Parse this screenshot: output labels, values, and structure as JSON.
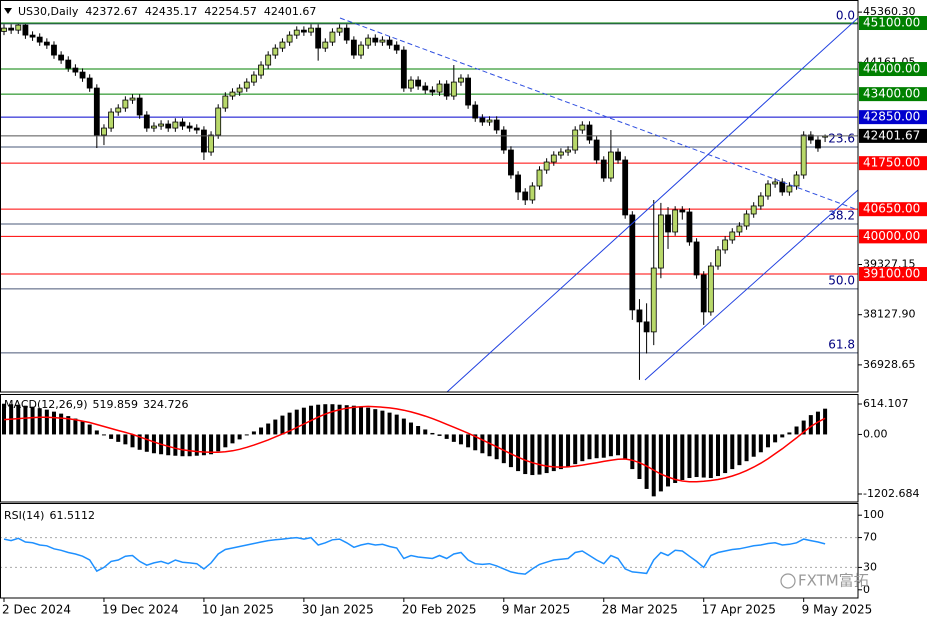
{
  "chart_data": [
    {
      "type": "candlestick",
      "title": "US30,Daily",
      "categories": [
        "2 Dec 2024",
        null,
        null,
        null,
        null,
        null,
        null,
        null,
        null,
        null,
        null,
        null,
        null,
        null,
        "19 Dec 2024",
        null,
        null,
        null,
        null,
        null,
        null,
        null,
        null,
        null,
        null,
        null,
        null,
        null,
        "10 Jan 2025",
        null,
        null,
        null,
        null,
        null,
        null,
        null,
        null,
        null,
        null,
        null,
        null,
        null,
        "30 Jan 2025",
        null,
        null,
        null,
        null,
        null,
        null,
        null,
        null,
        null,
        null,
        null,
        null,
        null,
        "20 Feb 2025",
        null,
        null,
        null,
        null,
        null,
        null,
        null,
        null,
        null,
        null,
        null,
        null,
        null,
        "9 Mar 2025",
        null,
        null,
        null,
        null,
        null,
        null,
        null,
        null,
        null,
        null,
        null,
        null,
        null,
        "28 Mar 2025",
        null,
        null,
        null,
        null,
        null,
        null,
        null,
        null,
        null,
        null,
        null,
        null,
        null,
        "17 Apr 2025",
        null,
        null,
        null,
        null,
        null,
        null,
        null,
        null,
        null,
        null,
        null,
        null,
        null,
        "9 May 2025",
        null,
        null,
        null
      ],
      "open": [
        44900,
        44978,
        44930,
        45050,
        44811,
        44763,
        44644,
        44572,
        44334,
        44214,
        44023,
        43927,
        43784,
        43545,
        42422,
        42589,
        42972,
        43068,
        43258,
        43306,
        42901,
        42589,
        42637,
        42685,
        42589,
        42733,
        42637,
        42589,
        42542,
        42016,
        42422,
        43068,
        43354,
        43449,
        43545,
        43688,
        43856,
        44095,
        44334,
        44500,
        44644,
        44811,
        44930,
        44883,
        44978,
        44500,
        44644,
        44883,
        44978,
        44692,
        44334,
        44572,
        44739,
        44644,
        44692,
        44572,
        44453,
        43545,
        43736,
        43593,
        43497,
        43449,
        43641,
        43354,
        43688,
        43784,
        43139,
        42828,
        42733,
        42781,
        42542,
        42064,
        41467,
        41061,
        40870,
        41204,
        41586,
        41777,
        41944,
        42016,
        42064,
        42542,
        42661,
        42303,
        41825,
        41395,
        42016,
        41825,
        40512,
        38242,
        37956,
        37717,
        39243,
        40512,
        40105,
        40631,
        40583,
        39866,
        39078,
        38194,
        39291,
        39676,
        39914,
        40105,
        40248,
        40535,
        40727,
        40965,
        41252,
        41300,
        41061,
        41204,
        41467,
        42422,
        42303,
        42372.67
      ],
      "high": [
        45068,
        45068,
        45073,
        45073,
        44901,
        44853,
        44734,
        44662,
        44424,
        44304,
        44113,
        44017,
        43874,
        43635,
        42679,
        43062,
        43158,
        43348,
        43396,
        43396,
        42991,
        42727,
        42775,
        42775,
        42823,
        42823,
        42727,
        42679,
        42632,
        42512,
        43158,
        43444,
        43539,
        43635,
        43778,
        43946,
        44185,
        44424,
        44590,
        44734,
        44901,
        45020,
        45020,
        45068,
        45068,
        44734,
        44973,
        45068,
        45068,
        44782,
        44662,
        44829,
        44829,
        44782,
        44782,
        44662,
        44543,
        43826,
        43826,
        43683,
        43587,
        43731,
        43731,
        44095,
        43874,
        43874,
        43229,
        42918,
        42871,
        42871,
        42632,
        42154,
        41557,
        41151,
        41294,
        41676,
        41867,
        42034,
        42106,
        42154,
        42632,
        42751,
        42751,
        42393,
        41915,
        42542,
        42106,
        41915,
        40602,
        38500,
        38400,
        40870,
        40800,
        40700,
        40721,
        40721,
        40673,
        39956,
        39168,
        39381,
        39766,
        40004,
        40195,
        40338,
        40625,
        40817,
        41055,
        41342,
        41390,
        41390,
        41294,
        41557,
        42512,
        42512,
        42393,
        42435.17
      ],
      "low": [
        44810,
        44840,
        44840,
        44721,
        44673,
        44554,
        44482,
        44244,
        44124,
        43933,
        43837,
        43694,
        43455,
        42112,
        42182,
        42499,
        42882,
        42978,
        43168,
        42811,
        42499,
        42499,
        42547,
        42499,
        42499,
        42547,
        42499,
        42452,
        41825,
        41926,
        42332,
        42978,
        43264,
        43359,
        43455,
        43598,
        43766,
        44005,
        44244,
        44410,
        44554,
        44721,
        44793,
        44793,
        44200,
        44410,
        44554,
        44793,
        44602,
        44244,
        44244,
        44482,
        44554,
        44554,
        44482,
        44363,
        43455,
        43455,
        43503,
        43407,
        43359,
        43359,
        43264,
        43264,
        43598,
        43049,
        42738,
        42643,
        42643,
        42452,
        41974,
        41377,
        40870,
        40750,
        40780,
        41114,
        41496,
        41687,
        41854,
        41926,
        41974,
        42452,
        42213,
        41735,
        41305,
        41305,
        41735,
        40422,
        38004,
        36570,
        37200,
        37400,
        39000,
        39700,
        40015,
        40400,
        39776,
        38988,
        37884,
        38104,
        39201,
        39586,
        39824,
        40015,
        40158,
        40445,
        40637,
        40875,
        41162,
        40971,
        40971,
        41114,
        41377,
        42213,
        42022,
        42254.57
      ],
      "close": [
        44978,
        44930,
        45050,
        44811,
        44763,
        44644,
        44572,
        44334,
        44214,
        44023,
        43927,
        43784,
        43545,
        42422,
        42589,
        42972,
        43068,
        43258,
        43306,
        42901,
        42589,
        42637,
        42685,
        42589,
        42733,
        42637,
        42589,
        42542,
        42016,
        42422,
        43068,
        43354,
        43449,
        43545,
        43688,
        43856,
        44095,
        44334,
        44500,
        44644,
        44811,
        44930,
        44883,
        44978,
        44500,
        44644,
        44883,
        44978,
        44692,
        44334,
        44572,
        44739,
        44644,
        44692,
        44572,
        44453,
        43545,
        43736,
        43593,
        43497,
        43449,
        43641,
        43354,
        43688,
        43784,
        43139,
        42828,
        42733,
        42781,
        42542,
        42064,
        41467,
        41061,
        40870,
        41204,
        41586,
        41777,
        41944,
        42016,
        42064,
        42542,
        42661,
        42303,
        41825,
        41395,
        42016,
        41825,
        40512,
        38242,
        37956,
        37717,
        39243,
        40512,
        40105,
        40631,
        40583,
        39866,
        39078,
        38194,
        39291,
        39676,
        39914,
        40105,
        40248,
        40535,
        40727,
        40965,
        41252,
        41300,
        41061,
        41204,
        41467,
        42422,
        42303,
        42112,
        42401.67
      ],
      "up_color": "#b8d86a",
      "down_color": "#000000",
      "last_price_color": "#000000",
      "ylim": [
        36280,
        45650
      ],
      "yticks": [
        {
          "value": 45360.3,
          "label": "45360.30"
        },
        44161.05,
        39327.15,
        {
          "value": 38127.9,
          "label": "38127.90"
        },
        36928.65
      ],
      "levels": [
        {
          "value": 45100,
          "label": "45100.00",
          "color": "#008000"
        },
        {
          "value": 44000,
          "label": "44000.00",
          "color": "#008000"
        },
        {
          "value": 43400,
          "label": "43400.00",
          "color": "#008000"
        },
        {
          "value": 42850,
          "label": "42850.00",
          "color": "#0000cd"
        },
        {
          "value": 41750,
          "label": "41750.00",
          "color": "#ff0000"
        },
        {
          "value": 40650,
          "label": "40650.00",
          "color": "#ff0000"
        },
        {
          "value": 40000,
          "label": "40000.00",
          "color": "#ff0000"
        },
        {
          "value": 39100,
          "label": "39100.00",
          "color": "#ff0000"
        }
      ],
      "fib_color": "#4a5878",
      "fib": [
        {
          "label": "0.0",
          "value": 45080
        },
        {
          "label": "23.6",
          "value": 42136
        },
        {
          "label": "38.2",
          "value": 40297
        },
        {
          "label": "50.0",
          "value": 38744
        },
        {
          "label": "61.8",
          "value": 37215
        }
      ]
    },
    {
      "type": "macd",
      "title": "MACD(12,26,9)",
      "series": [
        {
          "type": "bar",
          "color": "#000000",
          "values": [
            620,
            610,
            600,
            580,
            560,
            530,
            500,
            460,
            420,
            370,
            320,
            260,
            200,
            80,
            -20,
            -90,
            -150,
            -200,
            -260,
            -310,
            -350,
            -380,
            -400,
            -420,
            -430,
            -440,
            -440,
            -430,
            -420,
            -400,
            -340,
            -260,
            -180,
            -100,
            -20,
            60,
            140,
            220,
            300,
            380,
            440,
            500,
            540,
            580,
            600,
            610,
            610,
            600,
            590,
            580,
            560,
            540,
            510,
            480,
            440,
            400,
            320,
            240,
            170,
            100,
            30,
            -30,
            -90,
            -150,
            -200,
            -260,
            -320,
            -380,
            -440,
            -500,
            -580,
            -660,
            -740,
            -800,
            -820,
            -810,
            -780,
            -740,
            -700,
            -660,
            -600,
            -540,
            -500,
            -480,
            -470,
            -440,
            -420,
            -500,
            -700,
            -900,
            -1100,
            -1250,
            -1150,
            -1050,
            -980,
            -920,
            -880,
            -860,
            -870,
            -880,
            -840,
            -780,
            -700,
            -620,
            -540,
            -450,
            -360,
            -260,
            -160,
            -60,
            40,
            160,
            280,
            390,
            460,
            519.859
          ]
        },
        {
          "type": "line",
          "color": "#ff0000",
          "values": [
            300,
            310,
            320,
            330,
            340,
            345,
            345,
            340,
            330,
            315,
            295,
            270,
            240,
            200,
            160,
            120,
            80,
            40,
            0,
            -50,
            -100,
            -150,
            -200,
            -240,
            -280,
            -310,
            -330,
            -345,
            -355,
            -360,
            -360,
            -350,
            -330,
            -300,
            -260,
            -215,
            -165,
            -110,
            -50,
            10,
            70,
            140,
            210,
            280,
            350,
            410,
            460,
            500,
            530,
            550,
            560,
            565,
            560,
            550,
            535,
            515,
            490,
            455,
            415,
            370,
            320,
            265,
            205,
            145,
            85,
            25,
            -40,
            -110,
            -180,
            -250,
            -320,
            -390,
            -460,
            -520,
            -570,
            -610,
            -640,
            -655,
            -660,
            -655,
            -640,
            -620,
            -595,
            -570,
            -545,
            -520,
            -500,
            -495,
            -520,
            -570,
            -640,
            -720,
            -800,
            -860,
            -910,
            -940,
            -955,
            -955,
            -945,
            -930,
            -910,
            -880,
            -840,
            -790,
            -730,
            -660,
            -580,
            -490,
            -390,
            -290,
            -180,
            -70,
            50,
            160,
            250,
            324.726
          ]
        }
      ],
      "ylim": [
        -1364,
        796
      ],
      "yticks": [
        614.107,
        {
          "value": 0,
          "label": "0.00"
        },
        -1202.684
      ]
    },
    {
      "type": "line",
      "title": "RSI(14)",
      "series": [
        {
          "color": "#1e90ff",
          "values": [
            68,
            66,
            69,
            64,
            63,
            60,
            59,
            55,
            53,
            50,
            48,
            45,
            40,
            25,
            30,
            38,
            40,
            45,
            46,
            38,
            33,
            36,
            38,
            35,
            40,
            37,
            36,
            35,
            28,
            36,
            48,
            54,
            56,
            58,
            60,
            62,
            64,
            66,
            67,
            68,
            69,
            70,
            68,
            70,
            60,
            63,
            67,
            68,
            63,
            57,
            60,
            62,
            60,
            61,
            58,
            56,
            42,
            46,
            44,
            43,
            42,
            46,
            42,
            48,
            50,
            40,
            35,
            34,
            35,
            32,
            28,
            24,
            22,
            21,
            28,
            34,
            37,
            40,
            41,
            42,
            50,
            52,
            46,
            40,
            35,
            46,
            42,
            28,
            24,
            23,
            22,
            40,
            50,
            46,
            53,
            52,
            45,
            38,
            30,
            46,
            50,
            52,
            54,
            55,
            57,
            59,
            60,
            62,
            63,
            60,
            61,
            63,
            68,
            66,
            64,
            61.5112
          ]
        }
      ],
      "ylim": [
        -11,
        115
      ],
      "yticks": [
        100,
        70,
        30,
        0
      ],
      "levels": [
        70,
        30
      ]
    }
  ],
  "watermark": "FXTM富拓"
}
